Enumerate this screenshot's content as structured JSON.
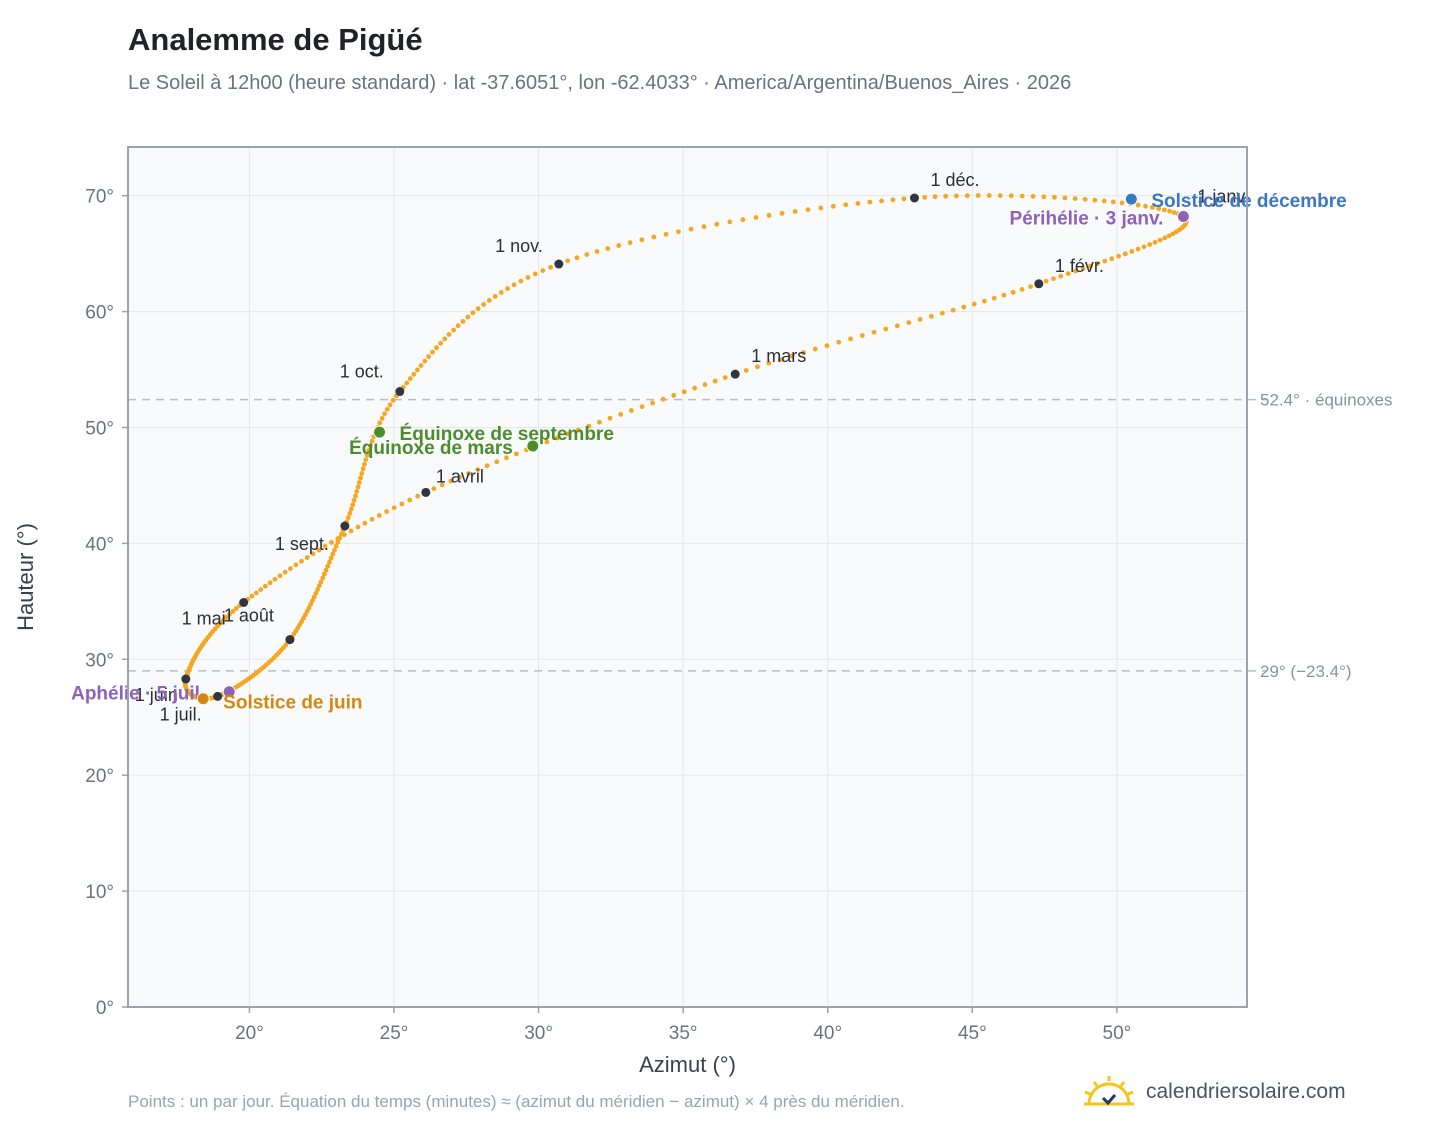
{
  "header": {
    "title": "Analemme de Pigüé",
    "subtitle": "Le Soleil à 12h00 (heure standard) · lat -37.6051°, lon -62.4033° · America/Argentina/Buenos_Aires · 2026"
  },
  "footer": {
    "note": "Points : un par jour. Équation du temps (minutes) ≈ (azimut du méridien − azimut) × 4 près du méridien.",
    "brand": "calendriersolaire.com",
    "brand_icon": "sun-logo-icon"
  },
  "colors": {
    "curve": "#f5a623",
    "month_marker": "#2f3640",
    "equinox": "#4c8c2b",
    "december_solstice": "#3b78c3",
    "june_solstice": "#d4880f",
    "apsides": "#8e62b8",
    "grid": "#e5e7eb",
    "frame": "#9aa3b0",
    "plot_bg": "#f8fafc",
    "refline": "#b8bec7"
  },
  "chart_data": {
    "type": "scatter",
    "xlabel": "Azimut (°)",
    "ylabel": "Hauteur (°)",
    "xlim": [
      15.8,
      54.5
    ],
    "ylim": [
      0,
      74.2
    ],
    "xticks": [
      20,
      25,
      30,
      35,
      40,
      45,
      50
    ],
    "xtick_labels": [
      "20°",
      "25°",
      "30°",
      "35°",
      "40°",
      "45°",
      "50°"
    ],
    "yticks": [
      0,
      10,
      20,
      30,
      40,
      50,
      60,
      70
    ],
    "ytick_labels": [
      "0°",
      "10°",
      "20°",
      "30°",
      "40°",
      "50°",
      "60°",
      "70°"
    ],
    "grid": true,
    "reference_lines": [
      {
        "y": 52.4,
        "label": "52.4° · équinoxes"
      },
      {
        "y": 29.0,
        "label": "29° (−23.4°)"
      }
    ],
    "month_markers": [
      {
        "label": "1 janv.",
        "az": 52.3,
        "alt": 68.2
      },
      {
        "label": "1 févr.",
        "az": 47.3,
        "alt": 62.4
      },
      {
        "label": "1 mars",
        "az": 36.8,
        "alt": 54.6
      },
      {
        "label": "1 avril",
        "az": 26.1,
        "alt": 44.4
      },
      {
        "label": "1 mai",
        "az": 19.8,
        "alt": 34.9
      },
      {
        "label": "1 juin",
        "az": 17.8,
        "alt": 28.3
      },
      {
        "label": "1 juil.",
        "az": 18.9,
        "alt": 26.8
      },
      {
        "label": "1 août",
        "az": 21.4,
        "alt": 31.7
      },
      {
        "label": "1 sept.",
        "az": 23.3,
        "alt": 41.5
      },
      {
        "label": "1 oct.",
        "az": 25.2,
        "alt": 53.1
      },
      {
        "label": "1 nov.",
        "az": 30.7,
        "alt": 64.1
      },
      {
        "label": "1 déc.",
        "az": 43.0,
        "alt": 69.8
      }
    ],
    "events": [
      {
        "label": "Solstice de décembre",
        "az": 50.5,
        "alt": 69.7,
        "color_key": "december_solstice"
      },
      {
        "label": "Périhélie · 3 janv.",
        "az": 52.3,
        "alt": 68.2,
        "color_key": "apsides"
      },
      {
        "label": "Équinoxe de septembre",
        "az": 24.5,
        "alt": 49.6,
        "color_key": "equinox"
      },
      {
        "label": "Équinoxe de mars",
        "az": 29.8,
        "alt": 48.4,
        "color_key": "equinox"
      },
      {
        "label": "Aphélie · 5 juil.",
        "az": 19.3,
        "alt": 27.2,
        "color_key": "apsides"
      },
      {
        "label": "Solstice de juin",
        "az": 18.4,
        "alt": 26.6,
        "color_key": "june_solstice"
      }
    ]
  }
}
